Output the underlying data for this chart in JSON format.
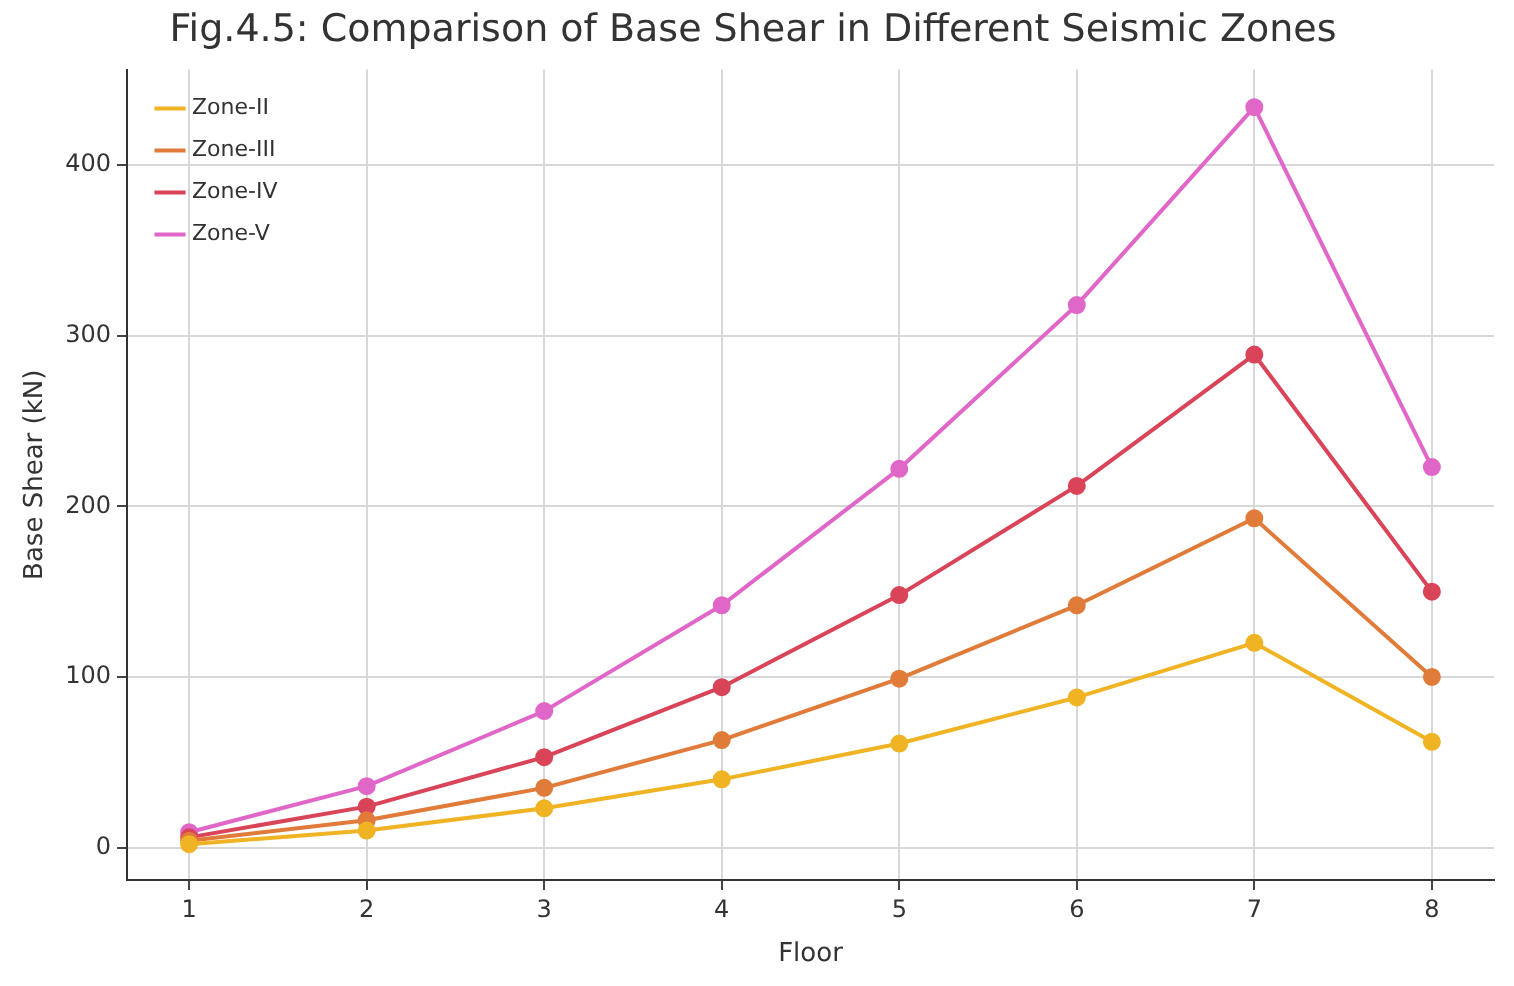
{
  "chart_data": {
    "type": "line",
    "title": "Fig.4.5: Comparison of Base Shear in Different Seismic Zones",
    "xlabel": "Floor",
    "ylabel": "Base Shear (kN)",
    "x": [
      1,
      2,
      3,
      4,
      5,
      6,
      7,
      8
    ],
    "series": [
      {
        "name": "Zone-II",
        "color": "#f0b323",
        "values": [
          2,
          10,
          23,
          40,
          61,
          88,
          120,
          62
        ]
      },
      {
        "name": "Zone-III",
        "color": "#e07b39",
        "values": [
          4,
          16,
          35,
          63,
          99,
          142,
          193,
          100
        ]
      },
      {
        "name": "Zone-IV",
        "color": "#d94459",
        "values": [
          6,
          24,
          53,
          94,
          148,
          212,
          289,
          150
        ]
      },
      {
        "name": "Zone-V",
        "color": "#e066c8",
        "values": [
          9,
          36,
          80,
          142,
          222,
          318,
          434,
          223
        ]
      }
    ],
    "xlim": [
      0.65,
      8.35
    ],
    "xticks": [
      1,
      2,
      3,
      4,
      5,
      6,
      7,
      8
    ],
    "ylim": [
      -19,
      456
    ],
    "yticks": [
      0,
      100,
      200,
      300,
      400
    ],
    "grid": true,
    "legend": "top left",
    "marker": "circle",
    "line_style": "solid"
  }
}
